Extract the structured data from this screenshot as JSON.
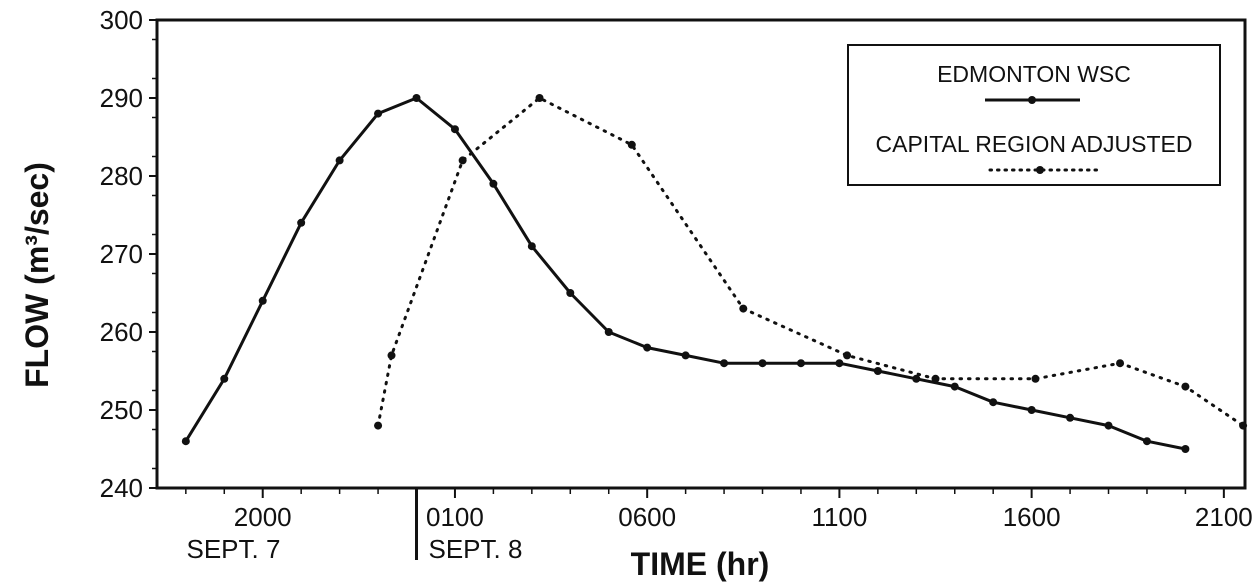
{
  "chart_data": {
    "type": "line",
    "xlabel": "TIME (hr)",
    "ylabel": "FLOW (m³/sec)",
    "ylim": [
      240,
      300
    ],
    "yticks": [
      240,
      250,
      260,
      270,
      280,
      290,
      300
    ],
    "xlim": [
      17.25,
      45.55
    ],
    "xticks": [
      {
        "value": 20,
        "label": "2000"
      },
      {
        "value": 25,
        "label": "0100"
      },
      {
        "value": 30,
        "label": "0600"
      },
      {
        "value": 35,
        "label": "1100"
      },
      {
        "value": 40,
        "label": "1600"
      },
      {
        "value": 45,
        "label": "2100"
      }
    ],
    "day_labels": [
      {
        "label": "SEPT. 7"
      },
      {
        "label": "SEPT. 8"
      }
    ],
    "day_divider_x": 24,
    "grid": false,
    "legend_position": "top-right",
    "series": [
      {
        "name": "EDMONTON WSC",
        "style": "solid",
        "color": "#111111",
        "x": [
          18,
          19,
          20,
          21,
          22,
          23,
          24,
          25,
          26,
          27,
          28,
          29,
          30,
          31,
          32,
          33,
          34,
          35,
          36,
          37,
          38,
          39,
          40,
          41,
          42,
          43,
          44
        ],
        "y": [
          246,
          254,
          264,
          274,
          282,
          288,
          290,
          286,
          279,
          271,
          265,
          260,
          258,
          257,
          256,
          256,
          256,
          256,
          255,
          254,
          253,
          251,
          250,
          249,
          248,
          246,
          245
        ]
      },
      {
        "name": "CAPITAL REGION ADJUSTED",
        "style": "dotted",
        "color": "#111111",
        "x": [
          23.0,
          23.35,
          25.2,
          27.2,
          29.6,
          32.5,
          35.2,
          37.5,
          40.1,
          42.3,
          44.0,
          45.5
        ],
        "y": [
          248,
          257,
          282,
          290,
          284,
          263,
          257,
          254,
          254,
          256,
          253,
          248
        ]
      }
    ]
  }
}
